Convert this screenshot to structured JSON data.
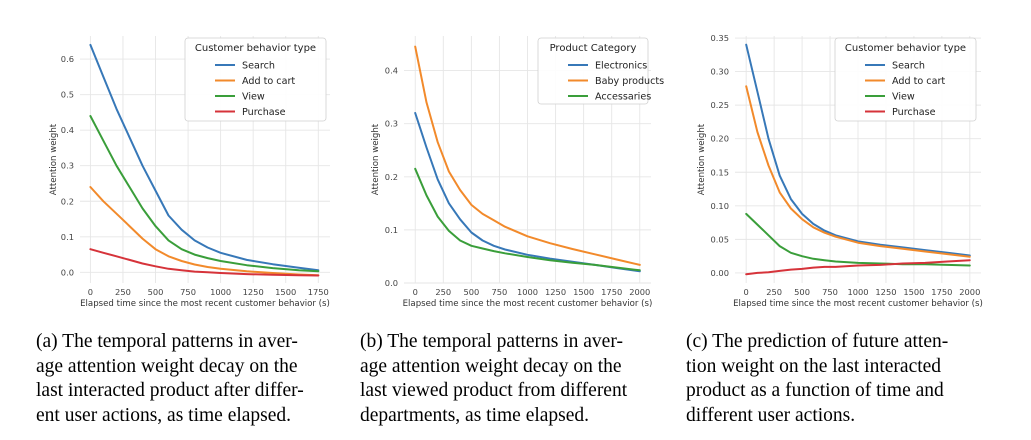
{
  "colors": {
    "blue": "#3778b8",
    "orange": "#f28a2b",
    "green": "#3a9e3a",
    "red": "#d6333a",
    "grid": "#e6e6e6",
    "tick": "#444444"
  },
  "chart_data": [
    {
      "type": "line",
      "xlabel": "Elapsed time since the most recent customer behavior (s)",
      "ylabel": "Attention weight",
      "xlim": [
        -80,
        1840
      ],
      "ylim": [
        -0.03,
        0.665
      ],
      "xticks": [
        0,
        250,
        500,
        750,
        1000,
        1250,
        1500,
        1750
      ],
      "yticks": [
        0.0,
        0.1,
        0.2,
        0.3,
        0.4,
        0.5,
        0.6
      ],
      "ytick_labels": [
        "0.0",
        "0.1",
        "0.2",
        "0.3",
        "0.4",
        "0.5",
        "0.6"
      ],
      "legend": {
        "title": "Customer behavior type",
        "placement": "top-right"
      },
      "series": [
        {
          "name": "Search",
          "color": "blue",
          "x": [
            0,
            100,
            200,
            300,
            400,
            500,
            600,
            700,
            800,
            900,
            1000,
            1200,
            1400,
            1600,
            1750
          ],
          "y": [
            0.64,
            0.55,
            0.46,
            0.38,
            0.3,
            0.23,
            0.16,
            0.12,
            0.09,
            0.07,
            0.055,
            0.035,
            0.023,
            0.013,
            0.006
          ]
        },
        {
          "name": "Add to cart",
          "color": "orange",
          "x": [
            0,
            100,
            200,
            300,
            400,
            500,
            600,
            700,
            800,
            900,
            1000,
            1200,
            1400,
            1600,
            1750
          ],
          "y": [
            0.24,
            0.2,
            0.165,
            0.13,
            0.095,
            0.065,
            0.045,
            0.032,
            0.022,
            0.015,
            0.01,
            0.003,
            -0.002,
            -0.006,
            -0.008
          ]
        },
        {
          "name": "View",
          "color": "green",
          "x": [
            0,
            100,
            200,
            300,
            400,
            500,
            600,
            700,
            800,
            900,
            1000,
            1200,
            1400,
            1600,
            1750
          ],
          "y": [
            0.44,
            0.37,
            0.3,
            0.24,
            0.18,
            0.13,
            0.09,
            0.065,
            0.05,
            0.04,
            0.032,
            0.02,
            0.012,
            0.006,
            0.003
          ]
        },
        {
          "name": "Purchase",
          "color": "red",
          "x": [
            0,
            100,
            200,
            300,
            400,
            500,
            600,
            700,
            800,
            900,
            1000,
            1200,
            1400,
            1600,
            1750
          ],
          "y": [
            0.065,
            0.055,
            0.045,
            0.035,
            0.025,
            0.017,
            0.01,
            0.006,
            0.002,
            0.0,
            -0.002,
            -0.005,
            -0.007,
            -0.008,
            -0.009
          ]
        }
      ]
    },
    {
      "type": "line",
      "xlabel": "Elapsed time since the most recent customer behavior (s)",
      "ylabel": "Attention weight",
      "xlim": [
        -100,
        2100
      ],
      "ylim": [
        0.0,
        0.465
      ],
      "xticks": [
        0,
        250,
        500,
        750,
        1000,
        1250,
        1500,
        1750,
        2000
      ],
      "yticks": [
        0.0,
        0.1,
        0.2,
        0.3,
        0.4
      ],
      "ytick_labels": [
        "0.0",
        "0.1",
        "0.2",
        "0.3",
        "0.4"
      ],
      "legend": {
        "title": "Product Category",
        "placement": "top-right"
      },
      "series": [
        {
          "name": "Electronics",
          "color": "blue",
          "x": [
            0,
            100,
            200,
            300,
            400,
            500,
            600,
            700,
            800,
            1000,
            1200,
            1400,
            1600,
            1800,
            2000
          ],
          "y": [
            0.32,
            0.255,
            0.195,
            0.15,
            0.12,
            0.095,
            0.08,
            0.07,
            0.063,
            0.053,
            0.046,
            0.04,
            0.034,
            0.028,
            0.022
          ]
        },
        {
          "name": "Baby products",
          "color": "orange",
          "x": [
            0,
            100,
            200,
            300,
            400,
            500,
            600,
            700,
            800,
            1000,
            1200,
            1400,
            1600,
            1800,
            2000
          ],
          "y": [
            0.445,
            0.34,
            0.265,
            0.21,
            0.175,
            0.147,
            0.13,
            0.118,
            0.106,
            0.088,
            0.075,
            0.064,
            0.054,
            0.044,
            0.034
          ]
        },
        {
          "name": "Accessaries",
          "color": "green",
          "x": [
            0,
            100,
            200,
            300,
            400,
            500,
            600,
            700,
            800,
            1000,
            1200,
            1400,
            1600,
            1800,
            2000
          ],
          "y": [
            0.215,
            0.165,
            0.125,
            0.098,
            0.08,
            0.07,
            0.065,
            0.06,
            0.056,
            0.049,
            0.043,
            0.038,
            0.034,
            0.029,
            0.024
          ]
        }
      ]
    },
    {
      "type": "line",
      "xlabel": "Elapsed time since the most recent customer behavior (s)",
      "ylabel": "Attention weight",
      "xlim": [
        -100,
        2100
      ],
      "ylim": [
        -0.015,
        0.353
      ],
      "xticks": [
        0,
        250,
        500,
        750,
        1000,
        1250,
        1500,
        1750,
        2000
      ],
      "yticks": [
        0.0,
        0.05,
        0.1,
        0.15,
        0.2,
        0.25,
        0.3,
        0.35
      ],
      "ytick_labels": [
        "0.00",
        "0.05",
        "0.10",
        "0.15",
        "0.20",
        "0.25",
        "0.30",
        "0.35"
      ],
      "legend": {
        "title": "Customer behavior type",
        "placement": "top-right"
      },
      "series": [
        {
          "name": "Search",
          "color": "blue",
          "x": [
            0,
            100,
            200,
            300,
            400,
            500,
            600,
            700,
            800,
            1000,
            1200,
            1400,
            1600,
            1800,
            2000
          ],
          "y": [
            0.34,
            0.27,
            0.2,
            0.145,
            0.11,
            0.088,
            0.073,
            0.063,
            0.056,
            0.047,
            0.042,
            0.038,
            0.034,
            0.03,
            0.026
          ]
        },
        {
          "name": "Add to cart",
          "color": "orange",
          "x": [
            0,
            100,
            200,
            300,
            400,
            500,
            600,
            700,
            800,
            1000,
            1200,
            1400,
            1600,
            1800,
            2000
          ],
          "y": [
            0.278,
            0.21,
            0.16,
            0.12,
            0.096,
            0.08,
            0.068,
            0.06,
            0.054,
            0.045,
            0.04,
            0.036,
            0.032,
            0.028,
            0.024
          ]
        },
        {
          "name": "View",
          "color": "green",
          "x": [
            0,
            100,
            200,
            300,
            400,
            500,
            600,
            700,
            800,
            1000,
            1200,
            1400,
            1600,
            1800,
            2000
          ],
          "y": [
            0.088,
            0.072,
            0.056,
            0.04,
            0.03,
            0.025,
            0.021,
            0.019,
            0.017,
            0.015,
            0.014,
            0.013,
            0.013,
            0.012,
            0.011
          ]
        },
        {
          "name": "Purchase",
          "color": "red",
          "x": [
            0,
            100,
            200,
            300,
            400,
            500,
            600,
            700,
            800,
            1000,
            1200,
            1400,
            1600,
            1800,
            2000
          ],
          "y": [
            -0.002,
            0.0,
            0.001,
            0.003,
            0.005,
            0.006,
            0.008,
            0.009,
            0.009,
            0.011,
            0.012,
            0.014,
            0.015,
            0.017,
            0.019
          ]
        }
      ]
    }
  ],
  "captions": {
    "a": [
      "(a) The temporal patterns in aver-",
      "age attention weight decay on the",
      "last interacted product after differ-",
      "ent user actions, as time elapsed."
    ],
    "b": [
      "(b) The temporal patterns in aver-",
      "age attention weight decay on the",
      "last viewed product from different",
      "departments, as time elapsed."
    ],
    "c": [
      "(c) The prediction of future atten-",
      "tion weight on the last interacted",
      "product as a function of time and",
      "different user actions."
    ]
  }
}
